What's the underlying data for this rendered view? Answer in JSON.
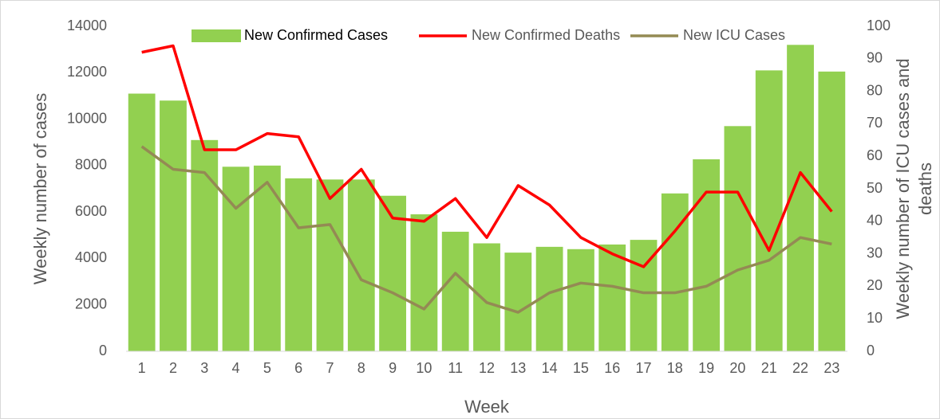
{
  "chart_data": {
    "type": "bar_line",
    "xlabel": "Week",
    "ylabel": "Weekly number of cases",
    "y2label": [
      "Weekly number of ICU cases and",
      "deaths"
    ],
    "categories": [
      "1",
      "2",
      "3",
      "4",
      "5",
      "6",
      "7",
      "8",
      "9",
      "10",
      "11",
      "12",
      "13",
      "14",
      "15",
      "16",
      "17",
      "18",
      "19",
      "20",
      "21",
      "22",
      "23"
    ],
    "series": [
      {
        "name": "New Confirmed Cases",
        "color": "#92d050",
        "kind": "bar",
        "axis": "y",
        "values": [
          11100,
          10800,
          9100,
          7950,
          8000,
          7450,
          7400,
          7400,
          6700,
          5900,
          5150,
          4650,
          4250,
          4500,
          4400,
          4600,
          4800,
          6800,
          8270,
          9700,
          12100,
          13200,
          12050
        ]
      },
      {
        "name": "New Confirmed Deaths",
        "color": "#ff0000",
        "kind": "line",
        "axis": "y2",
        "values": [
          92,
          94,
          62,
          62,
          67,
          66,
          47,
          56,
          41,
          40,
          47,
          35,
          51,
          45,
          35,
          30,
          26,
          37,
          49,
          49,
          31,
          55,
          43
        ]
      },
      {
        "name": "New ICU Cases",
        "color": "#948a54",
        "kind": "line",
        "axis": "y2",
        "values": [
          63,
          56,
          55,
          44,
          52,
          38,
          39,
          22,
          18,
          13,
          24,
          15,
          12,
          18,
          21,
          20,
          18,
          18,
          20,
          25,
          28,
          35,
          33
        ]
      }
    ],
    "ylim": [
      0,
      14000
    ],
    "yticks": [
      0,
      2000,
      4000,
      6000,
      8000,
      10000,
      12000,
      14000
    ],
    "y2lim": [
      0,
      100
    ],
    "y2ticks": [
      0,
      10,
      20,
      30,
      40,
      50,
      60,
      70,
      80,
      90,
      100
    ],
    "grid": false,
    "legend": "top"
  }
}
